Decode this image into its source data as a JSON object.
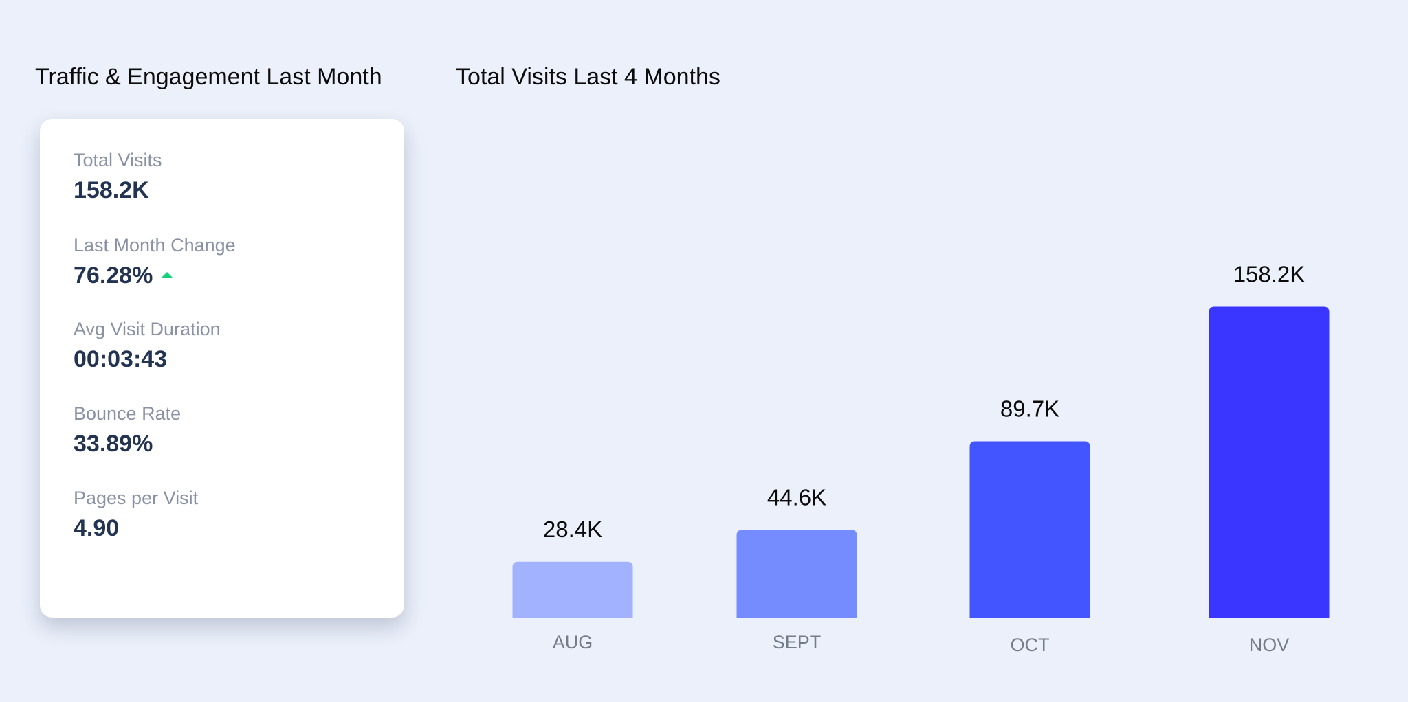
{
  "titles": {
    "left": "Traffic & Engagement Last Month",
    "right": "Total Visits Last 4 Months"
  },
  "stats": [
    {
      "label": "Total Visits",
      "value": "158.2K"
    },
    {
      "label": "Last Month Change",
      "value": "76.28%",
      "trend": "up",
      "trend_icon": "up-arrow-icon",
      "trend_color": "#14d07a"
    },
    {
      "label": "Avg Visit Duration",
      "value": "00:03:43"
    },
    {
      "label": "Bounce Rate",
      "value": "33.89%"
    },
    {
      "label": "Pages per Visit",
      "value": "4.90"
    }
  ],
  "chart_data": {
    "type": "bar",
    "title": "Total Visits Last 4 Months",
    "categories": [
      "AUG",
      "SEPT",
      "OCT",
      "NOV"
    ],
    "values": [
      28.4,
      44.6,
      89.7,
      158.2
    ],
    "value_labels": [
      "28.4K",
      "44.6K",
      "89.7K",
      "158.2K"
    ],
    "unit": "K",
    "colors": [
      "#a3b2ff",
      "#748cff",
      "#4355ff",
      "#3a35ff"
    ],
    "xlabel": "",
    "ylabel": "",
    "grid": false,
    "legend": "none"
  }
}
